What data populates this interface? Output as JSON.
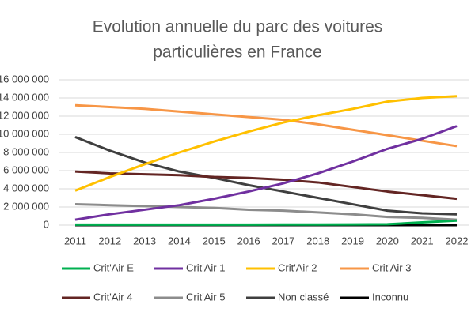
{
  "chart_data": {
    "type": "line",
    "title": [
      "Evolution annuelle du parc des voitures",
      "particulières en France"
    ],
    "categories": [
      "2011",
      "2012",
      "2013",
      "2014",
      "2015",
      "2016",
      "2017",
      "2018",
      "2019",
      "2020",
      "2021",
      "2022"
    ],
    "ylim": [
      0,
      16000000
    ],
    "yticks": [
      {
        "value": 0,
        "label": "0"
      },
      {
        "value": 2000000,
        "label": "2 000 000"
      },
      {
        "value": 4000000,
        "label": "4 000 000"
      },
      {
        "value": 6000000,
        "label": "6 000 000"
      },
      {
        "value": 8000000,
        "label": "8 000 000"
      },
      {
        "value": 10000000,
        "label": "10 000 000"
      },
      {
        "value": 12000000,
        "label": "12 000 000"
      },
      {
        "value": 14000000,
        "label": "14 000 000"
      },
      {
        "value": 16000000,
        "label": "16 000 000"
      }
    ],
    "grid": true,
    "series": [
      {
        "name": "Crit'Air E",
        "color": "#00b050",
        "values": [
          50000,
          50000,
          50000,
          50000,
          50000,
          50000,
          60000,
          70000,
          80000,
          100000,
          300000,
          500000
        ]
      },
      {
        "name": "Crit'Air 1",
        "color": "#7030a0",
        "values": [
          600000,
          1200000,
          1700000,
          2200000,
          2900000,
          3700000,
          4600000,
          5700000,
          7000000,
          8400000,
          9500000,
          10900000
        ]
      },
      {
        "name": "Crit'Air 2",
        "color": "#ffc000",
        "values": [
          3800000,
          5300000,
          6700000,
          8000000,
          9200000,
          10300000,
          11300000,
          12100000,
          12800000,
          13600000,
          14000000,
          14200000
        ]
      },
      {
        "name": "Crit'Air 3",
        "color": "#f79646",
        "values": [
          13200000,
          13000000,
          12800000,
          12500000,
          12200000,
          11900000,
          11600000,
          11100000,
          10500000,
          9900000,
          9300000,
          8700000
        ]
      },
      {
        "name": "Crit'Air 4",
        "color": "#632523",
        "values": [
          5900000,
          5700000,
          5600000,
          5500000,
          5300000,
          5200000,
          5000000,
          4700000,
          4200000,
          3700000,
          3300000,
          2900000
        ]
      },
      {
        "name": "Crit'Air 5",
        "color": "#8c8c8c",
        "values": [
          2300000,
          2200000,
          2100000,
          2000000,
          1900000,
          1700000,
          1600000,
          1400000,
          1200000,
          900000,
          800000,
          600000
        ]
      },
      {
        "name": "Non classé",
        "color": "#3f3f3f",
        "values": [
          9700000,
          8200000,
          6900000,
          5900000,
          5200000,
          4400000,
          3700000,
          3000000,
          2300000,
          1600000,
          1300000,
          1200000
        ]
      },
      {
        "name": "Inconnu",
        "color": "#000000",
        "values": [
          0,
          0,
          0,
          0,
          0,
          0,
          0,
          0,
          0,
          0,
          0,
          0
        ]
      }
    ]
  }
}
